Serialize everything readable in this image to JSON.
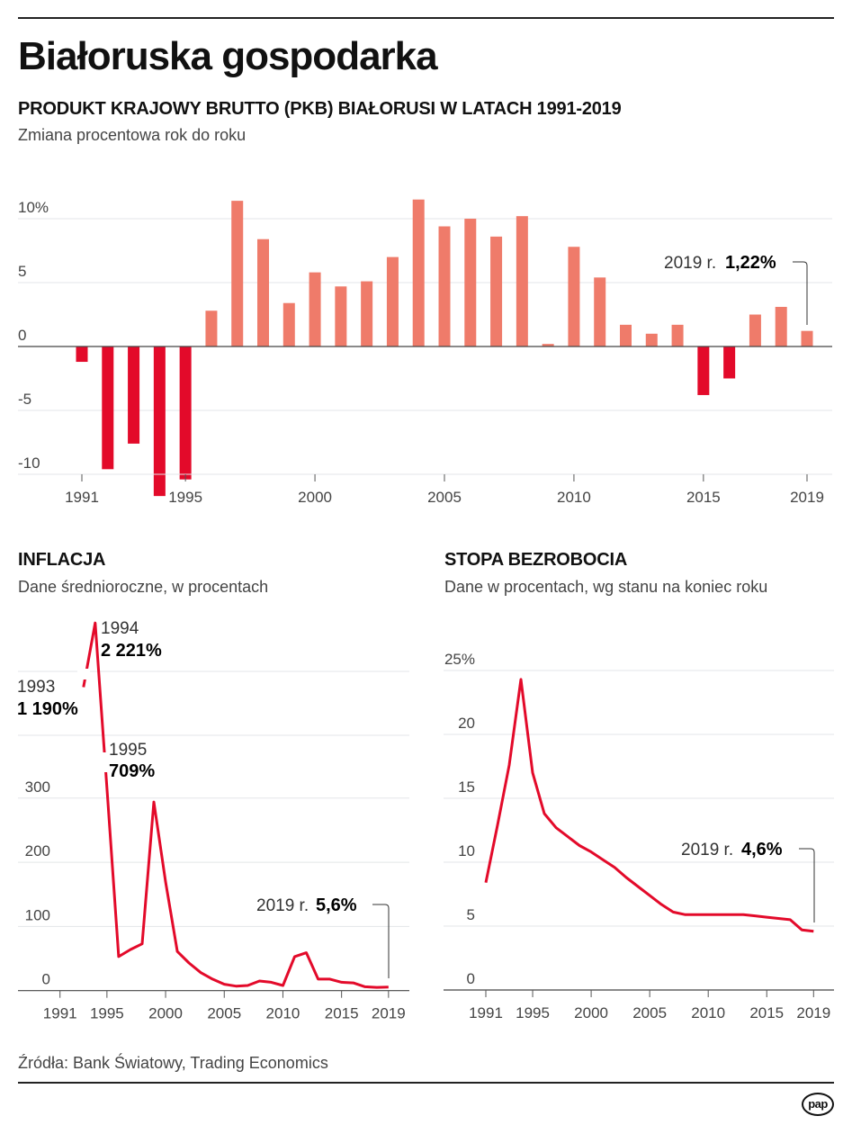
{
  "title": "Białoruska gospodarka",
  "colors": {
    "positive": "#ef7b6a",
    "negative": "#e30a2a",
    "line": "#e30a2a",
    "grid": "#e3e6e8"
  },
  "source": "Źródła: Bank Światowy, Trading Economics",
  "logo": "pap",
  "chart_data": [
    {
      "type": "bar",
      "title": "PRODUKT KRAJOWY BRUTTO (PKB) BIAŁORUSI W LATACH 1991-2019",
      "subtitle": "Zmiana procentowa rok do roku",
      "x": [
        1991,
        1992,
        1993,
        1994,
        1995,
        1996,
        1997,
        1998,
        1999,
        2000,
        2001,
        2002,
        2003,
        2004,
        2005,
        2006,
        2007,
        2008,
        2009,
        2010,
        2011,
        2012,
        2013,
        2014,
        2015,
        2016,
        2017,
        2018,
        2019
      ],
      "values": [
        -1.2,
        -9.6,
        -7.6,
        -11.7,
        -10.4,
        2.8,
        11.4,
        8.4,
        3.4,
        5.8,
        4.7,
        5.1,
        7.0,
        11.5,
        9.4,
        10.0,
        8.6,
        10.2,
        0.2,
        7.8,
        5.4,
        1.7,
        1.0,
        1.7,
        -3.8,
        -2.5,
        2.5,
        3.1,
        1.22
      ],
      "ylim": [
        -12,
        12
      ],
      "yticks": [
        {
          "v": 10,
          "label": "10%"
        },
        {
          "v": 5,
          "label": "5"
        },
        {
          "v": 0,
          "label": "0"
        },
        {
          "v": -5,
          "label": "-5"
        },
        {
          "v": -10,
          "label": "-10"
        }
      ],
      "xticks": [
        "1991",
        "1995",
        "2000",
        "2005",
        "2010",
        "2015",
        "2019"
      ],
      "grid": true,
      "annotation": {
        "prefix": "2019 r.",
        "value": "1,22%"
      }
    },
    {
      "type": "line",
      "title": "INFLACJA",
      "subtitle": "Dane średnioroczne, w procentach",
      "x": [
        1993,
        1994,
        1995,
        1996,
        1997,
        1998,
        1999,
        2000,
        2001,
        2002,
        2003,
        2004,
        2005,
        2006,
        2007,
        2008,
        2009,
        2010,
        2011,
        2012,
        2013,
        2014,
        2015,
        2016,
        2017,
        2018,
        2019
      ],
      "values": [
        1190,
        2221,
        709,
        53,
        64,
        73,
        294,
        169,
        61,
        43,
        28,
        18,
        10,
        7,
        8,
        15,
        13,
        8,
        53,
        59,
        18,
        18,
        13,
        12,
        6,
        5,
        5.6
      ],
      "ylim": [
        0,
        350
      ],
      "axis_break": true,
      "yticks": [
        {
          "v": 300,
          "label": "300"
        },
        {
          "v": 200,
          "label": "200"
        },
        {
          "v": 100,
          "label": "100"
        },
        {
          "v": 0,
          "label": "0"
        }
      ],
      "xticks": [
        "1991",
        "1995",
        "2000",
        "2005",
        "2010",
        "2015",
        "2019"
      ],
      "grid": true,
      "callouts": [
        {
          "year": "1993",
          "value": "1 190%"
        },
        {
          "year": "1994",
          "value": "2 221%"
        },
        {
          "year": "1995",
          "value": "709%"
        }
      ],
      "annotation": {
        "prefix": "2019 r.",
        "value": "5,6%"
      }
    },
    {
      "type": "line",
      "title": "STOPA BEZROBOCIA",
      "subtitle": "Dane w procentach, wg stanu na koniec roku",
      "x": [
        1991,
        1992,
        1993,
        1994,
        1995,
        1996,
        1997,
        1998,
        1999,
        2000,
        2001,
        2002,
        2003,
        2004,
        2005,
        2006,
        2007,
        2008,
        2009,
        2010,
        2011,
        2012,
        2013,
        2014,
        2015,
        2016,
        2017,
        2018,
        2019
      ],
      "values": [
        8.4,
        12.9,
        17.6,
        24.3,
        17.0,
        13.8,
        12.7,
        12.0,
        11.3,
        10.8,
        10.2,
        9.6,
        8.8,
        8.1,
        7.4,
        6.7,
        6.1,
        5.9,
        5.9,
        5.9,
        5.9,
        5.9,
        5.9,
        5.8,
        5.7,
        5.6,
        5.5,
        4.7,
        4.6
      ],
      "ylim": [
        0,
        25
      ],
      "yticks": [
        {
          "v": 25,
          "label": "25%"
        },
        {
          "v": 20,
          "label": "20"
        },
        {
          "v": 15,
          "label": "15"
        },
        {
          "v": 10,
          "label": "10"
        },
        {
          "v": 5,
          "label": "5"
        },
        {
          "v": 0,
          "label": "0"
        }
      ],
      "xticks": [
        "1991",
        "1995",
        "2000",
        "2005",
        "2010",
        "2015",
        "2019"
      ],
      "grid": true,
      "annotation": {
        "prefix": "2019 r.",
        "value": "4,6%"
      }
    }
  ]
}
